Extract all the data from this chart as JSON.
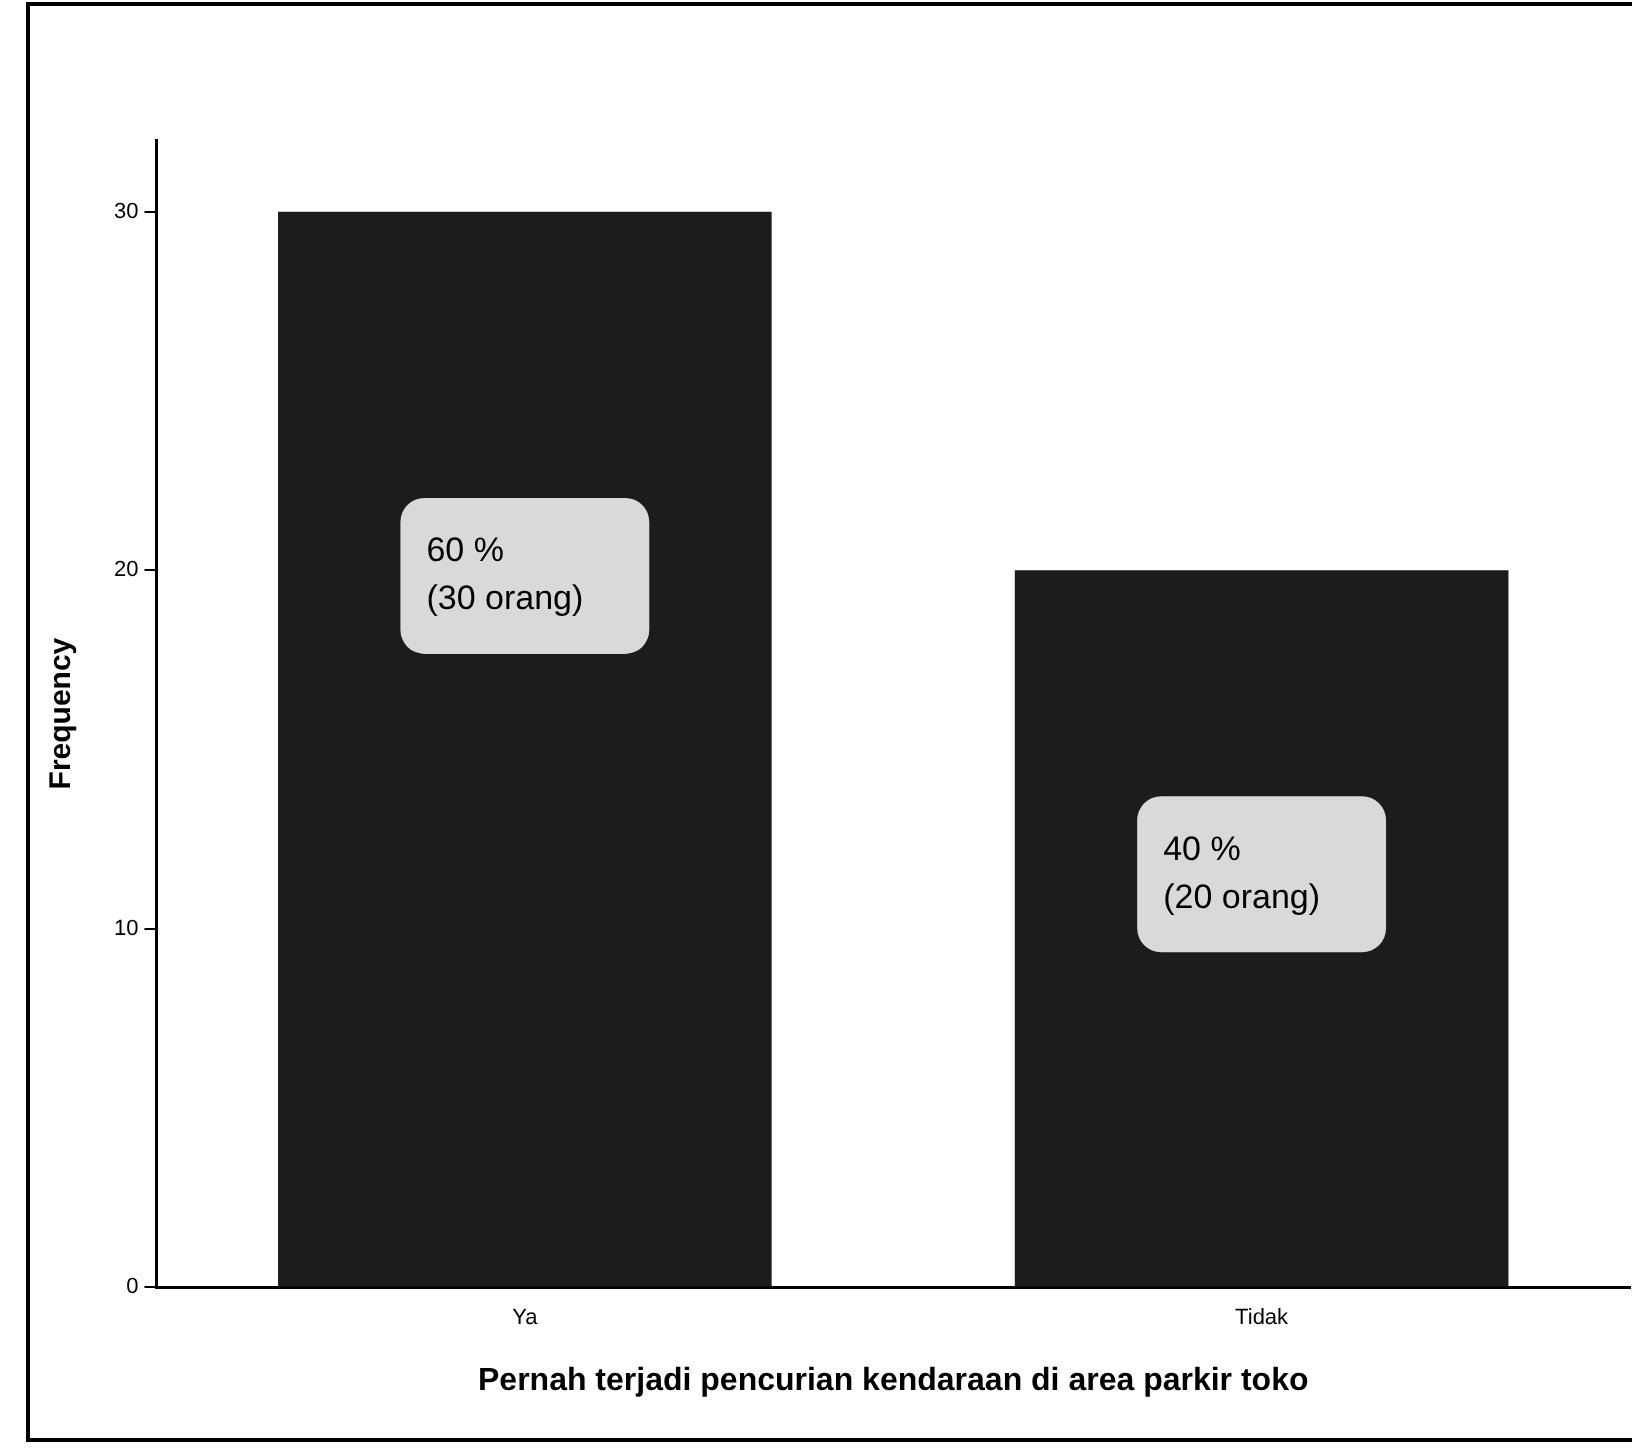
{
  "chart_data": {
    "type": "bar",
    "xlabel": "Pernah terjadi pencurian kendaraan di area parkir toko",
    "ylabel": "Frequency",
    "categories": [
      "Ya",
      "Tidak"
    ],
    "values": [
      30,
      20
    ],
    "color": "#1c1c1c",
    "ylim": [
      0,
      32
    ],
    "yticks": [
      0,
      10,
      20,
      30
    ],
    "grid": false,
    "legend": false,
    "annotations": [
      "60 %\n(30 orang)",
      "40 %\n(20 orang)"
    ]
  }
}
